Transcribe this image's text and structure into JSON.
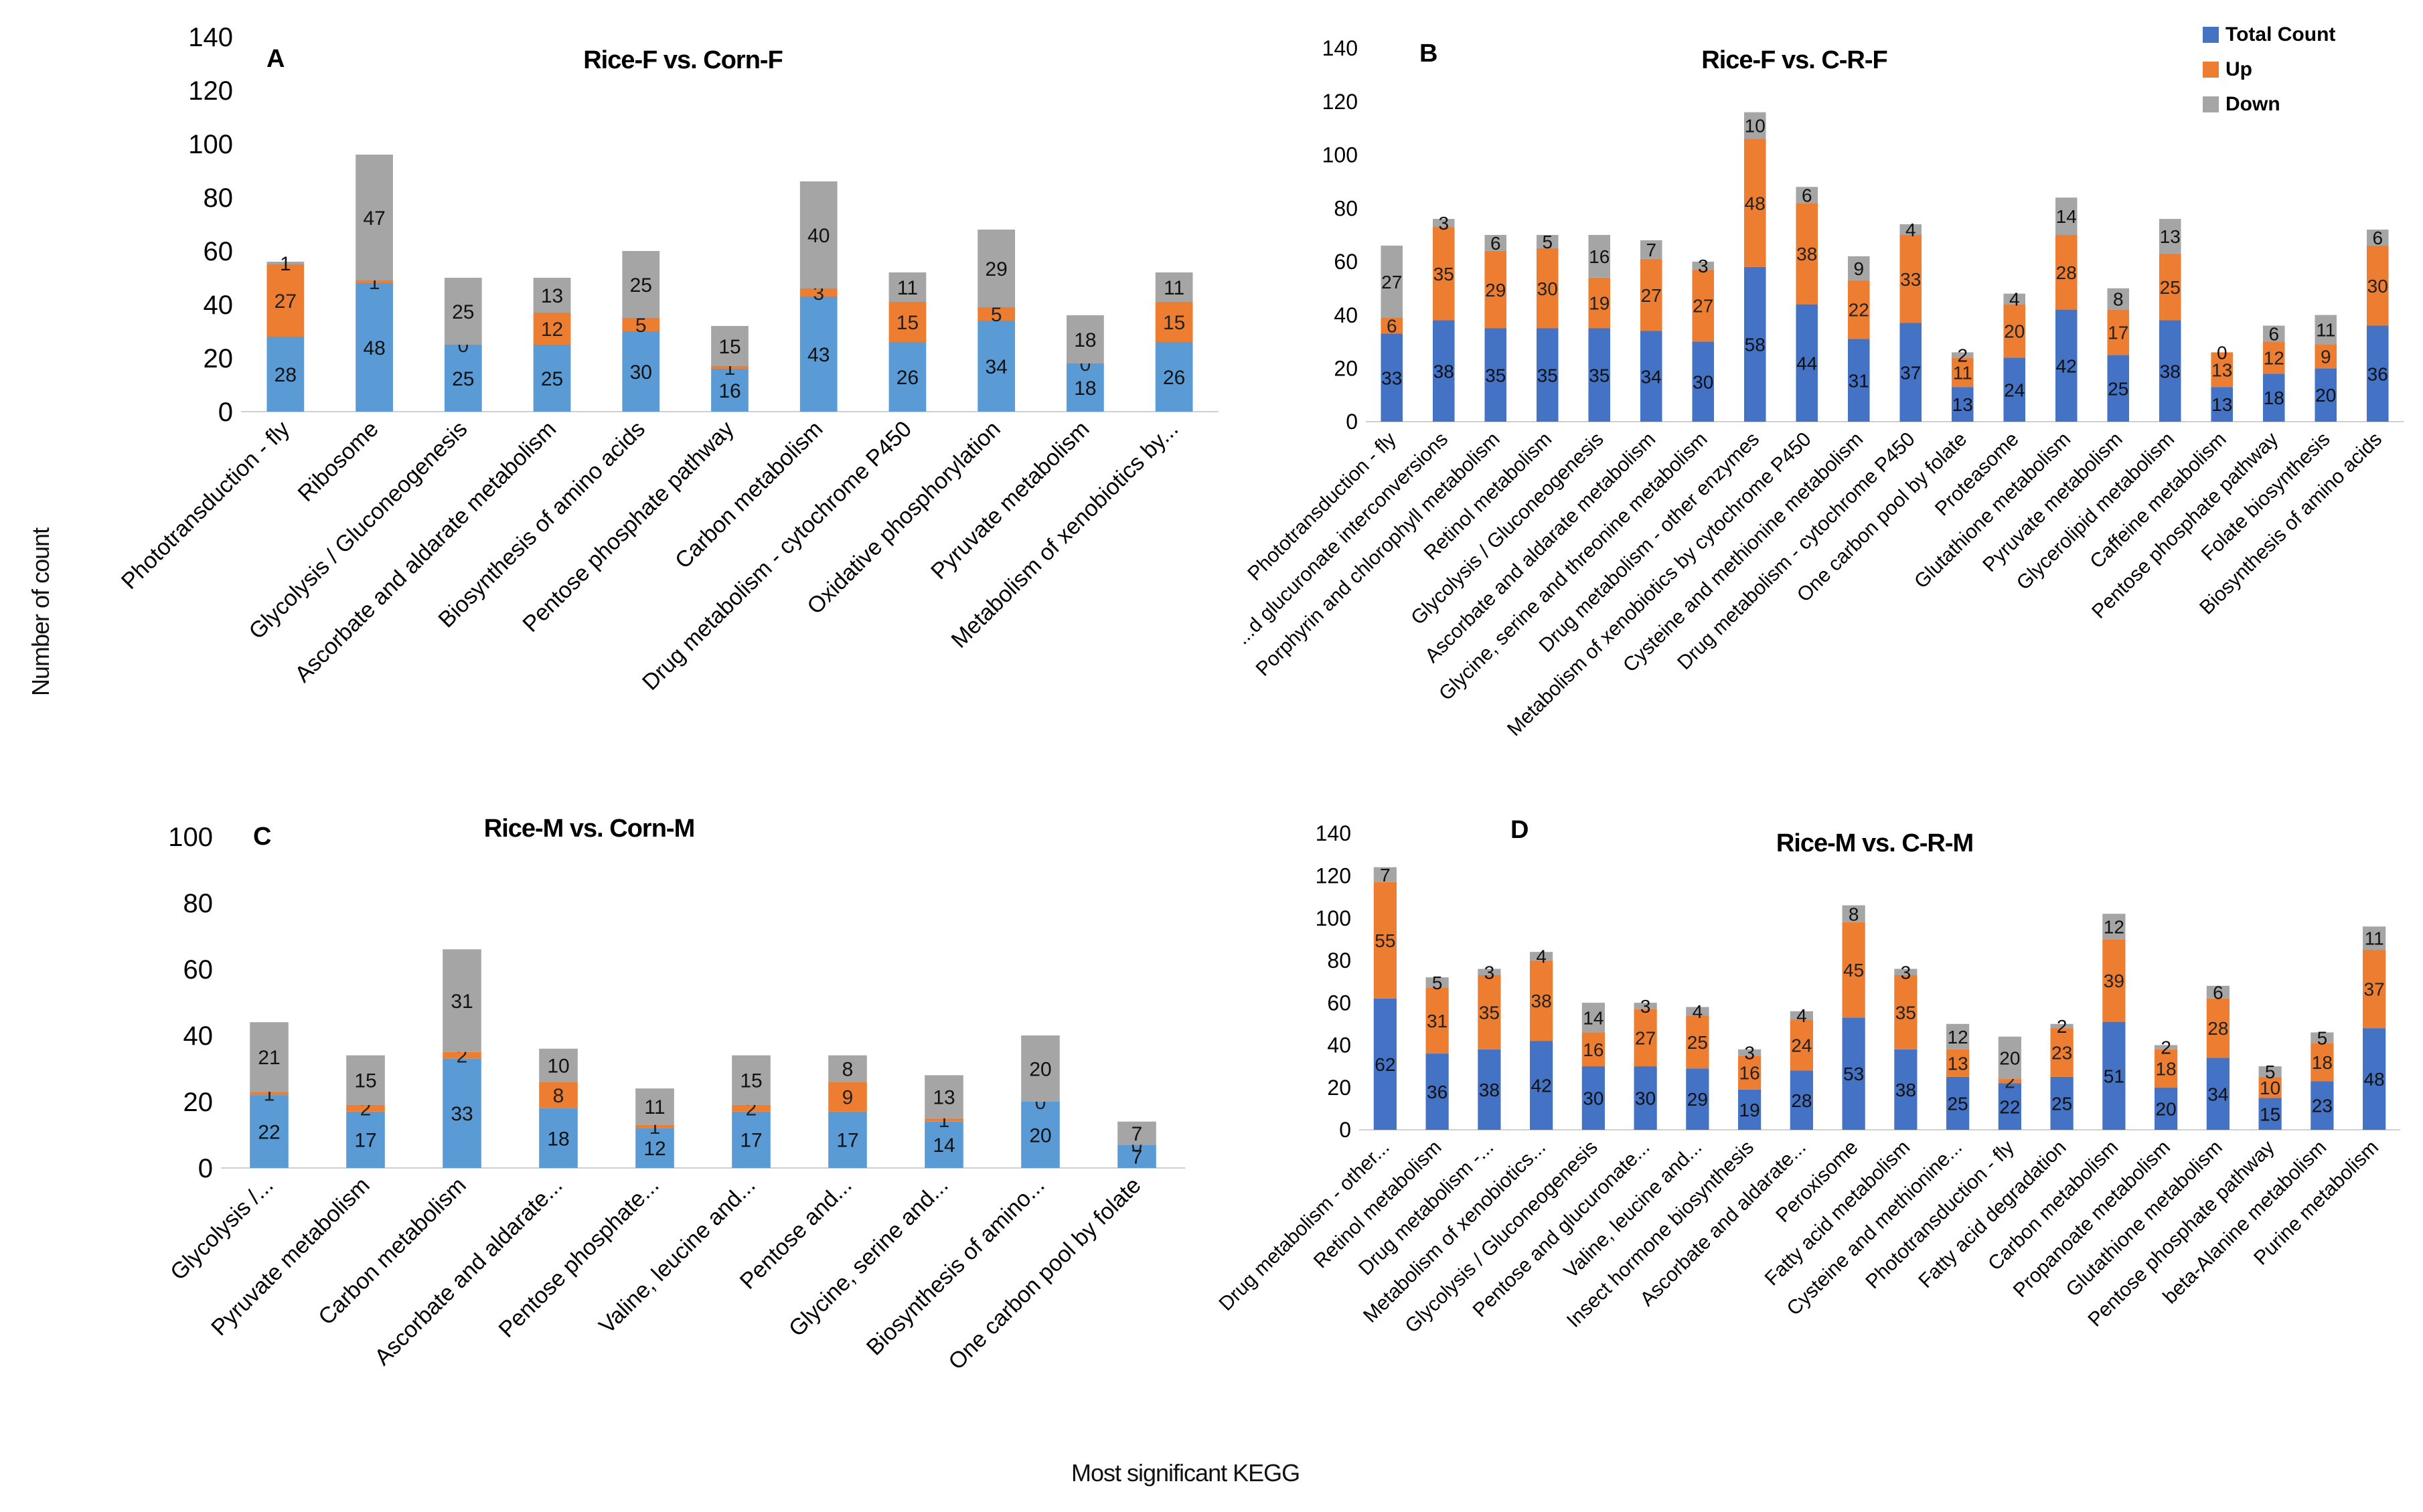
{
  "figure": {
    "ylabel": "Number of count",
    "xlabel": "Most significant KEGG"
  },
  "colors": {
    "total_panel_AC": "#5b9bd5",
    "total_panel_BD": "#4472c4",
    "up": "#ed7d31",
    "down": "#a5a5a5"
  },
  "chart_data": [
    {
      "type": "bar",
      "stacked": true,
      "panel": "A",
      "title": "Rice-F vs. Corn-F",
      "ylim": [
        0,
        140
      ],
      "yticks": [
        0,
        20,
        40,
        60,
        80,
        100,
        120,
        140
      ],
      "categories": [
        "Phototransduction - fly",
        "Ribosome",
        "Glycolysis / Gluconeogenesis",
        "Ascorbate and aldarate metabolism",
        "Biosynthesis of amino acids",
        "Pentose phosphate pathway",
        "Carbon metabolism",
        "Drug metabolism - cytochrome P450",
        "Oxidative phosphorylation",
        "Pyruvate metabolism",
        "Metabolism of xenobiotics by..."
      ],
      "series": [
        {
          "name": "Total Count",
          "values": [
            28,
            48,
            25,
            25,
            30,
            16,
            43,
            26,
            34,
            18,
            26
          ]
        },
        {
          "name": "Up",
          "values": [
            27,
            1,
            0,
            12,
            5,
            1,
            3,
            15,
            5,
            0,
            15
          ]
        },
        {
          "name": "Down",
          "values": [
            1,
            47,
            25,
            13,
            25,
            15,
            40,
            11,
            29,
            18,
            11
          ]
        }
      ]
    },
    {
      "type": "bar",
      "stacked": true,
      "panel": "B",
      "title": "Rice-F vs. C-R-F",
      "ylim": [
        0,
        140
      ],
      "yticks": [
        0,
        20,
        40,
        60,
        80,
        100,
        120,
        140
      ],
      "legend": [
        "Total Count",
        "Up",
        "Down"
      ],
      "legend_position": "top-right",
      "categories": [
        "Phototransduction - fly",
        "...d glucuronate interconversions",
        "Porphyrin and chlorophyll metabolism",
        "Retinol metabolism",
        "Glycolysis / Gluconeogenesis",
        "Ascorbate and aldarate metabolism",
        "Glycine, serine and threonine metabolism",
        "Drug metabolism - other enzymes",
        "Metabolism of xenobiotics by cytochrome P450",
        "Cysteine and methionine metabolism",
        "Drug metabolism - cytochrome P450",
        "One carbon pool by folate",
        "Proteasome",
        "Glutathione metabolism",
        "Pyruvate metabolism",
        "Glycerolipid metabolism",
        "Caffeine metabolism",
        "Pentose phosphate pathway",
        "Folate biosynthesis",
        "Biosynthesis of amino acids"
      ],
      "series": [
        {
          "name": "Total Count",
          "values": [
            33,
            38,
            35,
            35,
            35,
            34,
            30,
            58,
            44,
            31,
            37,
            13,
            24,
            42,
            25,
            38,
            13,
            18,
            20,
            36
          ]
        },
        {
          "name": "Up",
          "values": [
            6,
            35,
            29,
            30,
            19,
            27,
            27,
            48,
            38,
            22,
            33,
            11,
            20,
            28,
            17,
            25,
            13,
            12,
            9,
            30
          ]
        },
        {
          "name": "Down",
          "values": [
            27,
            3,
            6,
            5,
            16,
            7,
            3,
            10,
            6,
            9,
            4,
            2,
            4,
            14,
            8,
            13,
            0,
            6,
            11,
            6
          ]
        }
      ]
    },
    {
      "type": "bar",
      "stacked": true,
      "panel": "C",
      "title": "Rice-M vs. Corn-M",
      "ylim": [
        0,
        100
      ],
      "yticks": [
        0,
        20,
        40,
        60,
        80,
        100
      ],
      "categories": [
        "Glycolysis /...",
        "Pyruvate metabolism",
        "Carbon metabolism",
        "Ascorbate and aldarate...",
        "Pentose phosphate...",
        "Valine, leucine and...",
        "Pentose and...",
        "Glycine, serine and...",
        "Biosynthesis of amino...",
        "One carbon pool by folate"
      ],
      "series": [
        {
          "name": "Total Count",
          "values": [
            22,
            17,
            33,
            18,
            12,
            17,
            17,
            14,
            20,
            7
          ]
        },
        {
          "name": "Up",
          "values": [
            1,
            2,
            2,
            8,
            1,
            2,
            9,
            1,
            0,
            0
          ]
        },
        {
          "name": "Down",
          "values": [
            21,
            15,
            31,
            10,
            11,
            15,
            8,
            13,
            20,
            7
          ]
        }
      ]
    },
    {
      "type": "bar",
      "stacked": true,
      "panel": "D",
      "title": "Rice-M vs. C-R-M",
      "ylim": [
        0,
        140
      ],
      "yticks": [
        0,
        20,
        40,
        60,
        80,
        100,
        120,
        140
      ],
      "categories": [
        "Drug metabolism - other...",
        "Retinol metabolism",
        "Drug metabolism -...",
        "Metabolism of xenobiotics...",
        "Glycolysis / Gluconeogenesis",
        "Pentose and glucuronate...",
        "Valine, leucine and...",
        "Insect hormone biosynthesis",
        "Ascorbate and aldarate...",
        "Peroxisome",
        "Fatty acid metabolism",
        "Cysteine and methionine...",
        "Phototransduction - fly",
        "Fatty acid degradation",
        "Carbon metabolism",
        "Propanoate metabolism",
        "Glutathione metabolism",
        "Pentose phosphate pathway",
        "beta-Alanine metabolism",
        "Purine metabolism"
      ],
      "series": [
        {
          "name": "Total Count",
          "values": [
            62,
            36,
            38,
            42,
            30,
            30,
            29,
            19,
            28,
            53,
            38,
            25,
            22,
            25,
            51,
            20,
            34,
            15,
            23,
            48
          ]
        },
        {
          "name": "Up",
          "values": [
            55,
            31,
            35,
            38,
            16,
            27,
            25,
            16,
            24,
            45,
            35,
            13,
            2,
            23,
            39,
            18,
            28,
            10,
            18,
            37
          ]
        },
        {
          "name": "Down",
          "values": [
            7,
            5,
            3,
            4,
            14,
            3,
            4,
            3,
            4,
            8,
            3,
            12,
            20,
            2,
            12,
            2,
            6,
            5,
            5,
            11
          ]
        }
      ]
    }
  ]
}
